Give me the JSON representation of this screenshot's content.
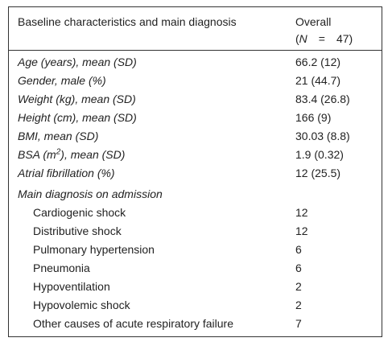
{
  "header": {
    "col1": "Baseline characteristics and main diagnosis",
    "col2_line1": "Overall",
    "col2_line2": [
      "(",
      "N",
      "=",
      "47)"
    ]
  },
  "characteristics": [
    [
      "Age (years), mean (SD)",
      "66.2 (12)"
    ],
    [
      "Gender, male (%)",
      "21 (44.7)"
    ],
    [
      "Weight (kg), mean (SD)",
      "83.4 (26.8)"
    ],
    [
      "Height (cm), mean (SD)",
      "166 (9)"
    ],
    [
      "BMI, mean (SD)",
      "30.03 (8.8)"
    ],
    [
      [
        "BSA (m",
        "2",
        "), mean (SD)"
      ],
      "1.9 (0.32)"
    ],
    [
      "Atrial fibrillation (%)",
      "12 (25.5)"
    ]
  ],
  "main_diagnosis": {
    "title": "Main diagnosis on admission",
    "rows": [
      [
        "Cardiogenic shock",
        "12"
      ],
      [
        "Distributive shock",
        "12"
      ],
      [
        "Pulmonary hypertension",
        "6"
      ],
      [
        "Pneumonia",
        "6"
      ],
      [
        "Hypoventilation",
        "2"
      ],
      [
        "Hypovolemic shock",
        "2"
      ],
      [
        "Other causes of acute respiratory failure",
        "7"
      ]
    ]
  }
}
